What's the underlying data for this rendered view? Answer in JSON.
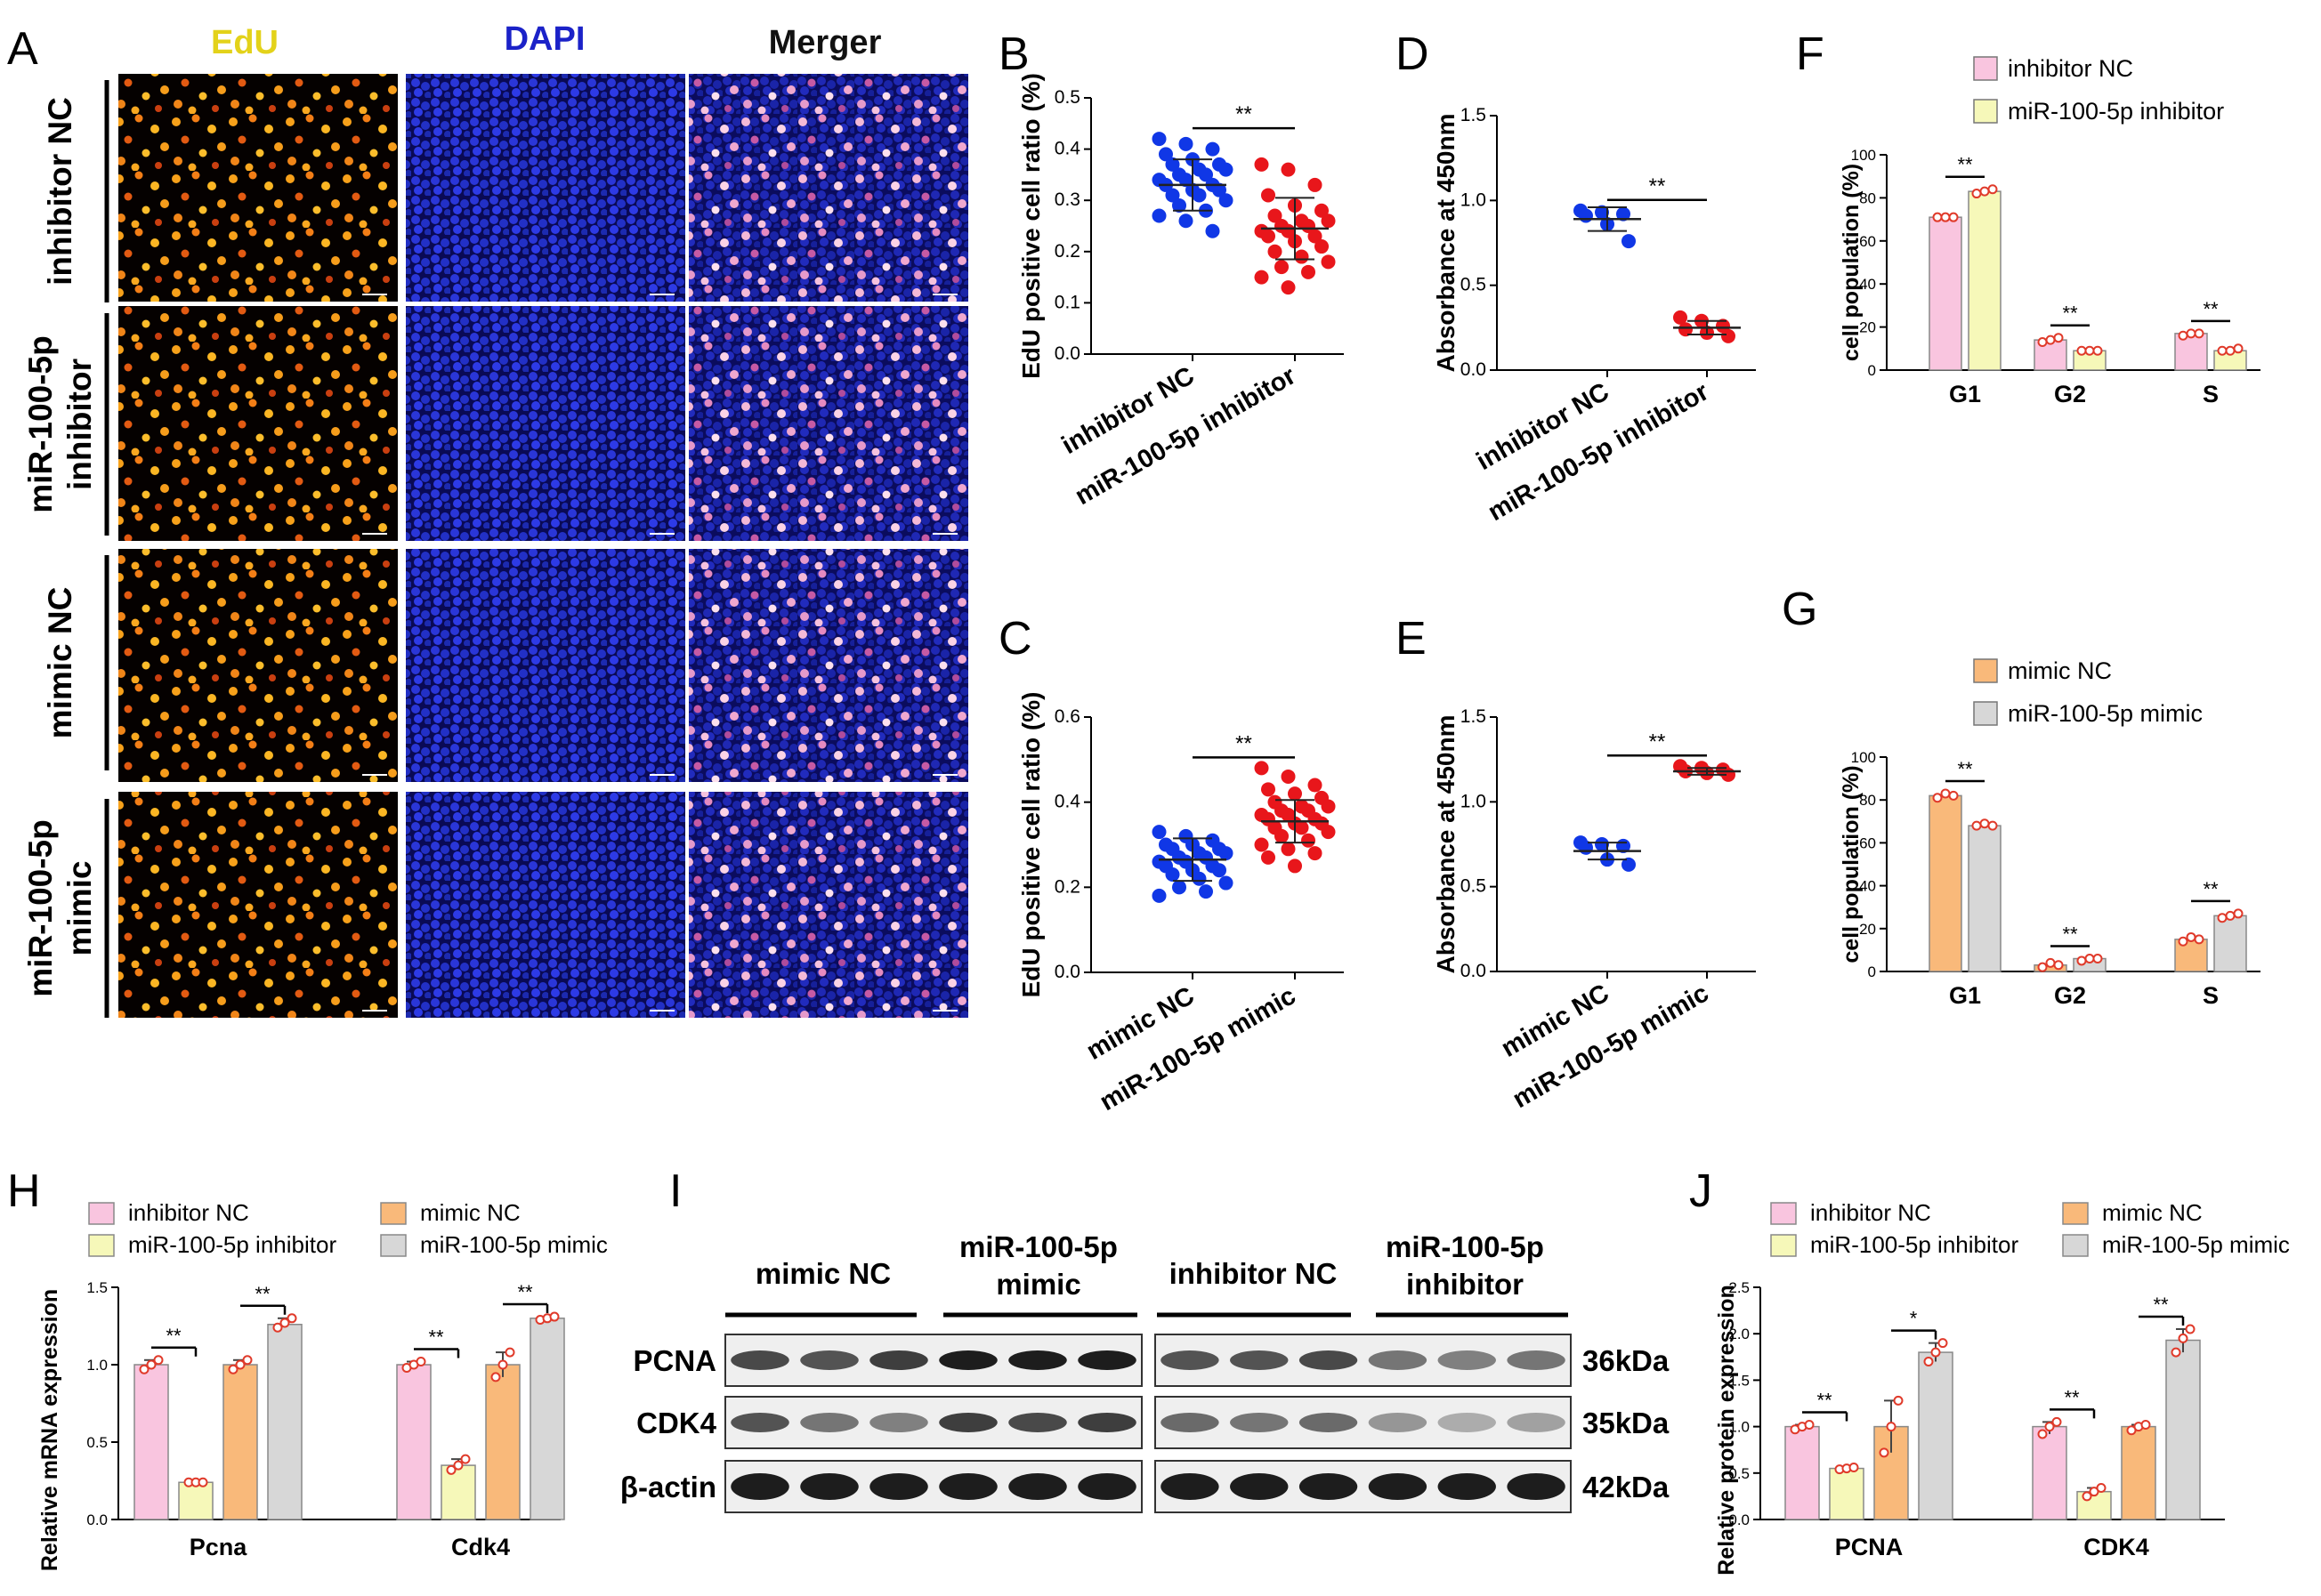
{
  "panel_letters": [
    "A",
    "B",
    "C",
    "D",
    "E",
    "F",
    "G",
    "H",
    "I",
    "J"
  ],
  "panel_a": {
    "columns": [
      "EdU",
      "DAPI",
      "Merger"
    ],
    "rows": [
      [
        "inhibitor NC"
      ],
      [
        "miR-100-5p",
        "inhibitor"
      ],
      [
        "mimic NC"
      ],
      [
        "miR-100-5p",
        "mimic"
      ]
    ]
  },
  "colors": {
    "pink": "#f9c5df",
    "yellow": "#f6f8b9",
    "orange": "#f9b97a",
    "gray": "#d7d7d7",
    "blue": "#1037e6",
    "red": "#e8161b",
    "dotred": "#e03a2a"
  },
  "chart_data": [
    {
      "id": "B",
      "type": "scatter",
      "ylabel": "EdU positive cell ratio (%)",
      "ylim": [
        0,
        0.5
      ],
      "yticks": [
        0.0,
        0.1,
        0.2,
        0.3,
        0.4,
        0.5
      ],
      "categories": [
        "inhibitor NC",
        "miR-100-5p inhibitor"
      ],
      "sig": "**",
      "series": [
        {
          "name": "inhibitor NC",
          "color": "blue",
          "mean": 0.33,
          "sd": 0.05,
          "values": [
            0.42,
            0.41,
            0.4,
            0.39,
            0.38,
            0.37,
            0.37,
            0.36,
            0.36,
            0.35,
            0.35,
            0.34,
            0.34,
            0.33,
            0.33,
            0.32,
            0.32,
            0.31,
            0.31,
            0.3,
            0.29,
            0.28,
            0.27,
            0.26,
            0.24
          ]
        },
        {
          "name": "miR-100-5p inhibitor",
          "color": "red",
          "mean": 0.245,
          "sd": 0.06,
          "values": [
            0.37,
            0.36,
            0.33,
            0.31,
            0.29,
            0.28,
            0.27,
            0.26,
            0.26,
            0.25,
            0.25,
            0.24,
            0.24,
            0.23,
            0.23,
            0.22,
            0.21,
            0.2,
            0.19,
            0.18,
            0.17,
            0.16,
            0.15,
            0.13
          ]
        }
      ]
    },
    {
      "id": "C",
      "type": "scatter",
      "ylabel": "EdU positive cell ratio (%)",
      "ylim": [
        0,
        0.6
      ],
      "yticks": [
        0.0,
        0.2,
        0.4,
        0.6
      ],
      "categories": [
        "mimic NC",
        "miR-100-5p mimic"
      ],
      "sig": "**",
      "series": [
        {
          "name": "mimic NC",
          "color": "blue",
          "mean": 0.265,
          "sd": 0.05,
          "values": [
            0.33,
            0.32,
            0.31,
            0.3,
            0.3,
            0.29,
            0.29,
            0.28,
            0.28,
            0.27,
            0.27,
            0.26,
            0.26,
            0.25,
            0.25,
            0.24,
            0.24,
            0.23,
            0.22,
            0.21,
            0.2,
            0.19,
            0.18
          ]
        },
        {
          "name": "miR-100-5p mimic",
          "color": "red",
          "mean": 0.355,
          "sd": 0.05,
          "values": [
            0.48,
            0.46,
            0.44,
            0.43,
            0.42,
            0.41,
            0.4,
            0.39,
            0.39,
            0.38,
            0.38,
            0.37,
            0.37,
            0.36,
            0.36,
            0.35,
            0.35,
            0.34,
            0.34,
            0.33,
            0.32,
            0.31,
            0.3,
            0.29,
            0.28,
            0.27,
            0.25
          ]
        }
      ]
    },
    {
      "id": "D",
      "type": "scatter",
      "ylabel": "Absorbance at 450nm",
      "ylim": [
        0,
        1.5
      ],
      "yticks": [
        0.0,
        0.5,
        1.0,
        1.5
      ],
      "categories": [
        "inhibitor NC",
        "miR-100-5p inhibitor"
      ],
      "sig": "**",
      "series": [
        {
          "name": "inhibitor NC",
          "color": "blue",
          "mean": 0.89,
          "sd": 0.07,
          "values": [
            0.94,
            0.93,
            0.92,
            0.91,
            0.86,
            0.76
          ]
        },
        {
          "name": "miR-100-5p inhibitor",
          "color": "red",
          "mean": 0.25,
          "sd": 0.04,
          "values": [
            0.31,
            0.29,
            0.26,
            0.24,
            0.22,
            0.2
          ]
        }
      ]
    },
    {
      "id": "E",
      "type": "scatter",
      "ylabel": "Absorbance at 450nm",
      "ylim": [
        0,
        1.5
      ],
      "yticks": [
        0.0,
        0.5,
        1.0,
        1.5
      ],
      "categories": [
        "mimic NC",
        "miR-100-5p mimic"
      ],
      "sig": "**",
      "series": [
        {
          "name": "mimic NC",
          "color": "blue",
          "mean": 0.71,
          "sd": 0.05,
          "values": [
            0.76,
            0.75,
            0.74,
            0.73,
            0.66,
            0.63
          ]
        },
        {
          "name": "miR-100-5p mimic",
          "color": "red",
          "mean": 1.18,
          "sd": 0.02,
          "values": [
            1.21,
            1.2,
            1.19,
            1.18,
            1.17,
            1.16
          ]
        }
      ]
    },
    {
      "id": "F",
      "type": "bar",
      "ylabel": "cell population (%)",
      "ylim": [
        0,
        100
      ],
      "yticks": [
        0,
        20,
        40,
        60,
        80,
        100
      ],
      "categories": [
        "G1",
        "G2",
        "S"
      ],
      "series": [
        {
          "name": "inhibitor NC",
          "color": "pink",
          "values": [
            71,
            14,
            17
          ],
          "points": [
            [
              71,
              71,
              71
            ],
            [
              13,
              14,
              15
            ],
            [
              16,
              17,
              17
            ]
          ]
        },
        {
          "name": "miR-100-5p inhibitor",
          "color": "yellow",
          "values": [
            83,
            9,
            9
          ],
          "points": [
            [
              82,
              83,
              84
            ],
            [
              9,
              9,
              9
            ],
            [
              9,
              9,
              10
            ]
          ]
        }
      ],
      "sig": [
        "**",
        "**",
        "**"
      ]
    },
    {
      "id": "G",
      "type": "bar",
      "ylabel": "cell population (%)",
      "ylim": [
        0,
        100
      ],
      "yticks": [
        0,
        20,
        40,
        60,
        80,
        100
      ],
      "categories": [
        "G1",
        "G2",
        "S"
      ],
      "series": [
        {
          "name": "mimic NC",
          "color": "orange",
          "values": [
            82,
            3,
            15
          ],
          "points": [
            [
              81,
              83,
              82
            ],
            [
              2,
              4,
              3
            ],
            [
              14,
              16,
              15
            ]
          ]
        },
        {
          "name": "miR-100-5p mimic",
          "color": "gray",
          "values": [
            68,
            6,
            26
          ],
          "points": [
            [
              68,
              69,
              68
            ],
            [
              5,
              6,
              6
            ],
            [
              25,
              26,
              27
            ]
          ]
        }
      ],
      "sig": [
        "**",
        "**",
        "**"
      ]
    },
    {
      "id": "H",
      "type": "bar",
      "ylabel": "Relative mRNA expression",
      "ylim": [
        0,
        1.5
      ],
      "yticks": [
        0.0,
        0.5,
        1.0,
        1.5
      ],
      "categories": [
        "Pcna",
        "Cdk4"
      ],
      "series": [
        {
          "name": "inhibitor NC",
          "color": "pink",
          "values": [
            1.0,
            1.0
          ],
          "points": [
            [
              0.97,
              1.0,
              1.03
            ],
            [
              0.98,
              1.0,
              1.02
            ]
          ]
        },
        {
          "name": "miR-100-5p inhibitor",
          "color": "yellow",
          "values": [
            0.24,
            0.35
          ],
          "points": [
            [
              0.24,
              0.24,
              0.24
            ],
            [
              0.32,
              0.35,
              0.39
            ]
          ]
        },
        {
          "name": "mimic NC",
          "color": "orange",
          "values": [
            1.0,
            1.0
          ],
          "points": [
            [
              0.97,
              1.0,
              1.03
            ],
            [
              0.92,
              1.0,
              1.08
            ]
          ]
        },
        {
          "name": "miR-100-5p mimic",
          "color": "gray",
          "values": [
            1.26,
            1.3
          ],
          "points": [
            [
              1.24,
              1.27,
              1.3
            ],
            [
              1.29,
              1.3,
              1.31
            ]
          ]
        }
      ],
      "legend": [
        "inhibitor NC",
        "mimic NC",
        "miR-100-5p inhibitor",
        "miR-100-5p mimic"
      ],
      "sig": [
        "**",
        "**",
        "**",
        "**"
      ]
    },
    {
      "id": "J",
      "type": "bar",
      "ylabel": "Relative protein expression",
      "ylim": [
        0,
        2.5
      ],
      "yticks": [
        0.0,
        0.5,
        1.0,
        1.5,
        2.0,
        2.5
      ],
      "categories": [
        "PCNA",
        "CDK4"
      ],
      "series": [
        {
          "name": "inhibitor NC",
          "color": "pink",
          "values": [
            1.0,
            1.0
          ],
          "points": [
            [
              0.97,
              1.0,
              1.02
            ],
            [
              0.92,
              1.0,
              1.05
            ]
          ]
        },
        {
          "name": "miR-100-5p inhibitor",
          "color": "yellow",
          "values": [
            0.55,
            0.3
          ],
          "points": [
            [
              0.54,
              0.55,
              0.56
            ],
            [
              0.25,
              0.3,
              0.34
            ]
          ]
        },
        {
          "name": "mimic NC",
          "color": "orange",
          "values": [
            1.0,
            1.0
          ],
          "points": [
            [
              0.72,
              1.0,
              1.28
            ],
            [
              0.96,
              1.0,
              1.02
            ]
          ]
        },
        {
          "name": "miR-100-5p mimic",
          "color": "gray",
          "values": [
            1.8,
            1.93
          ],
          "points": [
            [
              1.7,
              1.8,
              1.9
            ],
            [
              1.8,
              1.95,
              2.05
            ]
          ]
        }
      ],
      "legend": [
        "inhibitor NC",
        "mimic NC",
        "miR-100-5p inhibitor",
        "miR-100-5p mimic"
      ],
      "sig": [
        "**",
        "*",
        "**",
        "**"
      ]
    }
  ],
  "panel_i": {
    "groups": [
      "mimic NC",
      "miR-100-5p mimic",
      "inhibitor NC",
      "miR-100-5p inhibitor"
    ],
    "group_lines": [
      [
        "mimic NC"
      ],
      [
        "miR-100-5p",
        "mimic"
      ],
      [
        "inhibitor NC"
      ],
      [
        "miR-100-5p",
        "inhibitor"
      ]
    ],
    "proteins": [
      "PCNA",
      "CDK4",
      "β-actin"
    ],
    "sizes": [
      "36kDa",
      "35kDa",
      "42kDa"
    ],
    "band_intensity": {
      "PCNA": [
        0.75,
        0.7,
        0.8,
        0.95,
        0.95,
        0.95,
        0.7,
        0.7,
        0.75,
        0.55,
        0.5,
        0.55
      ],
      "CDK4": [
        0.7,
        0.55,
        0.5,
        0.8,
        0.75,
        0.8,
        0.6,
        0.55,
        0.6,
        0.4,
        0.3,
        0.35
      ],
      "β-actin": [
        0.95,
        0.95,
        0.95,
        0.95,
        0.95,
        0.95,
        0.95,
        0.95,
        0.95,
        0.95,
        0.95,
        0.95
      ]
    }
  }
}
